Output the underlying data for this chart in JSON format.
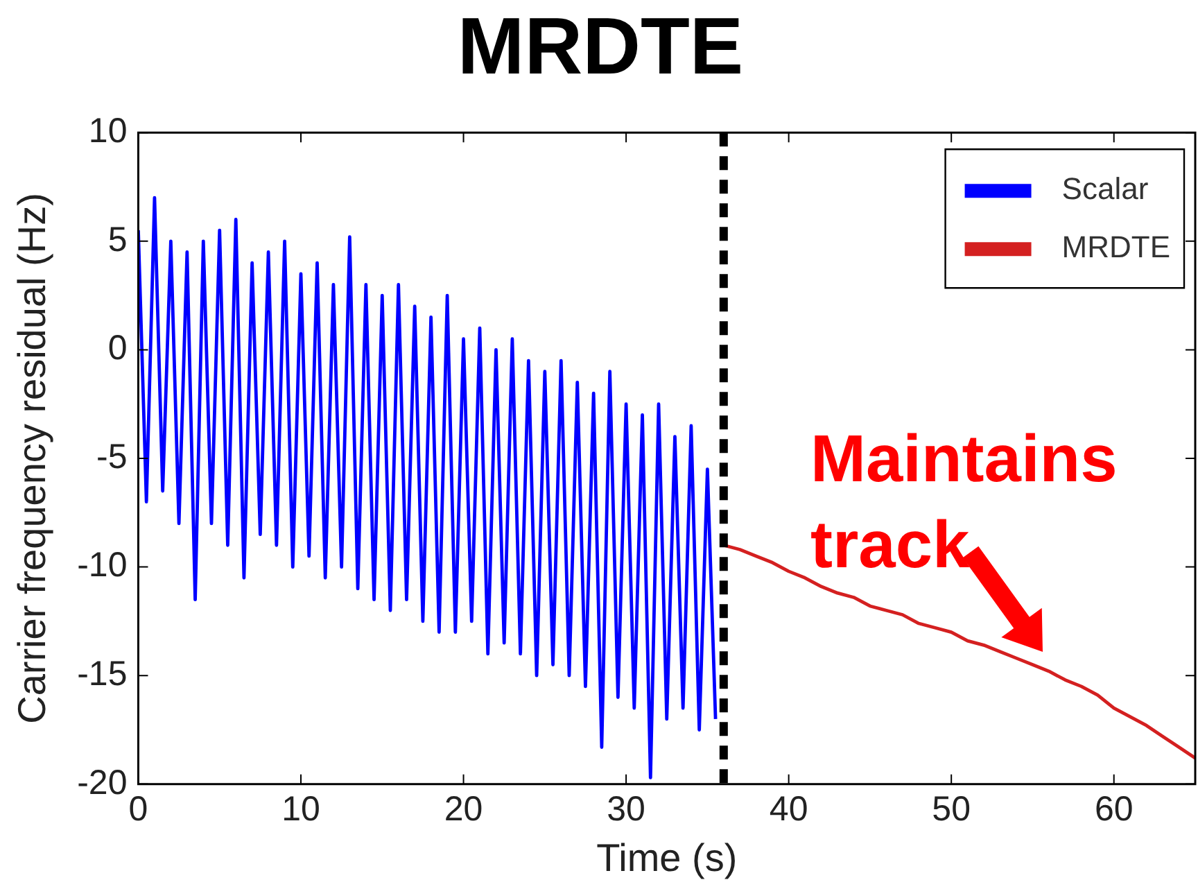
{
  "chart_data": {
    "type": "line",
    "title": "MRDTE",
    "xlabel": "Time (s)",
    "ylabel": "Carrier frequency residual (Hz)",
    "xlim": [
      0,
      65
    ],
    "xticks": [
      0,
      10,
      20,
      30,
      40,
      50,
      60
    ],
    "ylim": [
      -20,
      10
    ],
    "yticks": [
      -20,
      -15,
      -10,
      -5,
      0,
      5,
      10
    ],
    "legend": "top right",
    "marker": "none",
    "line_style": "solid",
    "series": [
      {
        "name": "Scalar",
        "color": "#0000ff",
        "x": [
          0,
          0.5,
          1,
          1.5,
          2,
          2.5,
          3,
          3.5,
          4,
          4.5,
          5,
          5.5,
          6,
          6.5,
          7,
          7.5,
          8,
          8.5,
          9,
          9.5,
          10,
          10.5,
          11,
          11.5,
          12,
          12.5,
          13,
          13.5,
          14,
          14.5,
          15,
          15.5,
          16,
          16.5,
          17,
          17.5,
          18,
          18.5,
          19,
          19.5,
          20,
          20.5,
          21,
          21.5,
          22,
          22.5,
          23,
          23.5,
          24,
          24.5,
          25,
          25.5,
          26,
          26.5,
          27,
          27.5,
          28,
          28.5,
          29,
          29.5,
          30,
          30.5,
          31,
          31.5,
          32,
          32.5,
          33,
          33.5,
          34,
          34.5,
          35,
          35.5
        ],
        "values": [
          5.5,
          -7,
          7,
          -6.5,
          5,
          -8,
          4.5,
          -11.5,
          5,
          -8,
          5.5,
          -9,
          6,
          -10.5,
          4,
          -8.5,
          4.5,
          -9,
          5,
          -10,
          3.5,
          -9.5,
          4,
          -10.5,
          3,
          -10,
          5.2,
          -11,
          3,
          -11.5,
          2.5,
          -12,
          3,
          -11.5,
          2,
          -12.5,
          1.5,
          -13,
          2.5,
          -13,
          0.5,
          -12.5,
          1,
          -14,
          0,
          -13.5,
          0.5,
          -14,
          -0.5,
          -15,
          -1,
          -14.5,
          -0.5,
          -15,
          -1.5,
          -15.5,
          -2,
          -18.3,
          -1,
          -16,
          -2.5,
          -16.5,
          -3,
          -19.7,
          -2.5,
          -17,
          -4,
          -16.5,
          -3.5,
          -17.5,
          -5.5,
          -17
        ]
      },
      {
        "name": "MRDTE",
        "color": "#d42020",
        "x": [
          36,
          37,
          38,
          39,
          40,
          41,
          42,
          43,
          44,
          45,
          46,
          47,
          48,
          49,
          50,
          51,
          52,
          53,
          54,
          55,
          56,
          57,
          58,
          59,
          60,
          61,
          62,
          63,
          64,
          65
        ],
        "values": [
          -9,
          -9.2,
          -9.5,
          -9.8,
          -10.2,
          -10.5,
          -10.9,
          -11.2,
          -11.4,
          -11.8,
          -12,
          -12.2,
          -12.6,
          -12.8,
          -13,
          -13.4,
          -13.6,
          -13.9,
          -14.2,
          -14.5,
          -14.8,
          -15.2,
          -15.5,
          -15.9,
          -16.5,
          -16.9,
          -17.3,
          -17.8,
          -18.3,
          -18.8
        ]
      }
    ],
    "ref_lines": [
      {
        "axis": "x",
        "value": 36,
        "color": "#000000",
        "line_style": "dashed"
      }
    ],
    "annotations": [
      {
        "text": "Maintains track",
        "x": 56,
        "y": -14.8
      }
    ]
  }
}
